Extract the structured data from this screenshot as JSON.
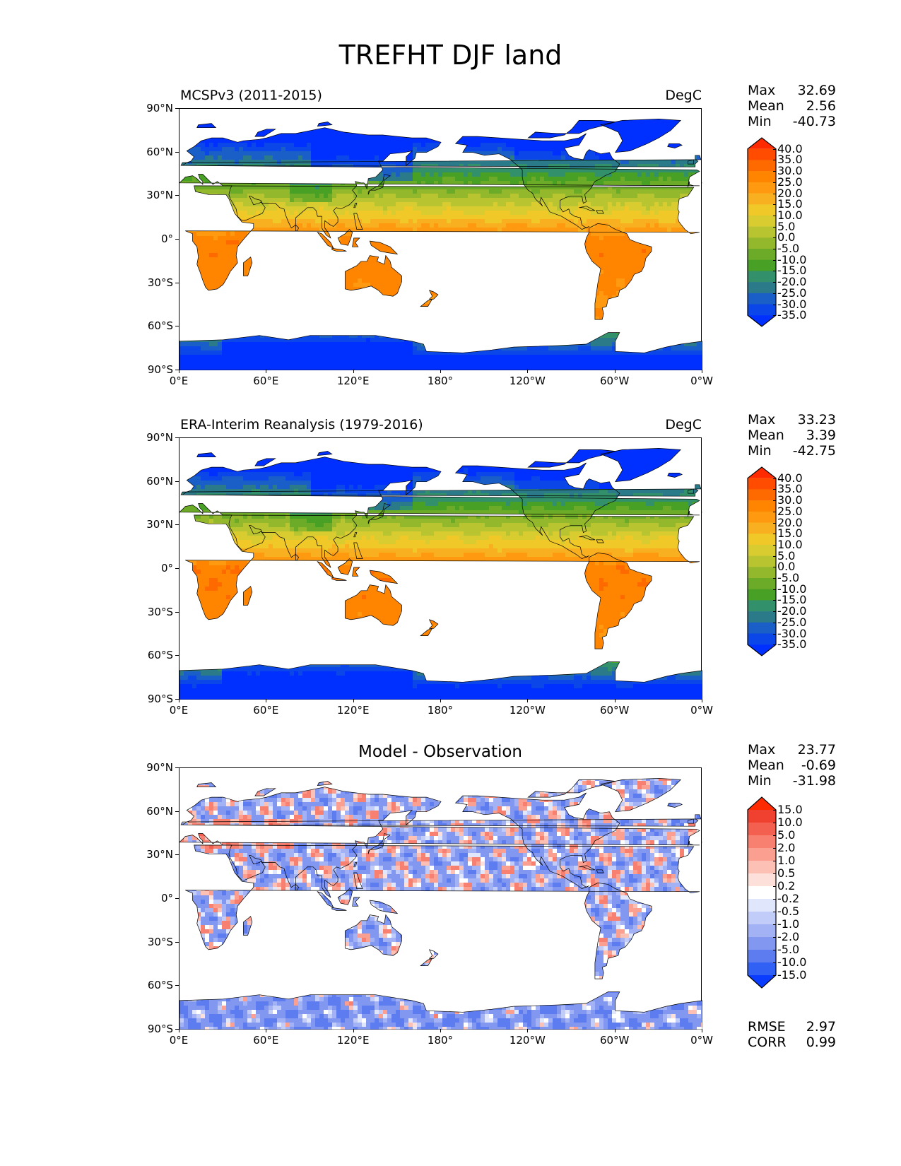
{
  "title": "TREFHT DJF land",
  "chart_data": [
    {
      "type": "heatmap",
      "title": "MCSPv3 (2011-2015)",
      "units": "DegC",
      "stats": [
        {
          "label": "Max",
          "value": "32.69"
        },
        {
          "label": "Mean",
          "value": "2.56"
        },
        {
          "label": "Min",
          "value": "-40.73"
        }
      ],
      "x_ticks": [
        "0°E",
        "60°E",
        "120°E",
        "180°",
        "120°W",
        "60°W",
        "0°W"
      ],
      "y_ticks": [
        "90°N",
        "60°N",
        "30°N",
        "0°",
        "30°S",
        "60°S",
        "90°S"
      ],
      "xlim": [
        0,
        360
      ],
      "ylim": [
        -90,
        90
      ],
      "colorbar": {
        "levels": [
          "40.0",
          "35.0",
          "30.0",
          "25.0",
          "20.0",
          "15.0",
          "10.0",
          "5.0",
          "0.0",
          "-5.0",
          "-10.0",
          "-15.0",
          "-20.0",
          "-25.0",
          "-30.0",
          "-35.0"
        ],
        "colors": [
          "#ff2a00",
          "#ff4c00",
          "#ff6a00",
          "#ff8400",
          "#ff9a10",
          "#f8b020",
          "#f0c828",
          "#d8cc30",
          "#b8c430",
          "#94b82c",
          "#6cab28",
          "#48a024",
          "#32906a",
          "#2a7a8a",
          "#1a5ec8",
          "#0a46e8",
          "#0030ff"
        ],
        "extend": "both"
      }
    },
    {
      "type": "heatmap",
      "title": "ERA-Interim Reanalysis (1979-2016)",
      "units": "DegC",
      "stats": [
        {
          "label": "Max",
          "value": "33.23"
        },
        {
          "label": "Mean",
          "value": "3.39"
        },
        {
          "label": "Min",
          "value": "-42.75"
        }
      ],
      "x_ticks": [
        "0°E",
        "60°E",
        "120°E",
        "180°",
        "120°W",
        "60°W",
        "0°W"
      ],
      "y_ticks": [
        "90°N",
        "60°N",
        "30°N",
        "0°",
        "30°S",
        "60°S",
        "90°S"
      ],
      "xlim": [
        0,
        360
      ],
      "ylim": [
        -90,
        90
      ],
      "colorbar": {
        "levels": [
          "40.0",
          "35.0",
          "30.0",
          "25.0",
          "20.0",
          "15.0",
          "10.0",
          "5.0",
          "0.0",
          "-5.0",
          "-10.0",
          "-15.0",
          "-20.0",
          "-25.0",
          "-30.0",
          "-35.0"
        ],
        "colors": [
          "#ff2a00",
          "#ff4c00",
          "#ff6a00",
          "#ff8400",
          "#ff9a10",
          "#f8b020",
          "#f0c828",
          "#d8cc30",
          "#b8c430",
          "#94b82c",
          "#6cab28",
          "#48a024",
          "#32906a",
          "#2a7a8a",
          "#1a5ec8",
          "#0a46e8",
          "#0030ff"
        ],
        "extend": "both"
      }
    },
    {
      "type": "heatmap",
      "title": "Model - Observation",
      "stats": [
        {
          "label": "Max",
          "value": "23.77"
        },
        {
          "label": "Mean",
          "value": "-0.69"
        },
        {
          "label": "Min",
          "value": "-31.98"
        }
      ],
      "extra_stats": [
        {
          "label": "RMSE",
          "value": "2.97"
        },
        {
          "label": "CORR",
          "value": "0.99"
        }
      ],
      "x_ticks": [
        "0°E",
        "60°E",
        "120°E",
        "180°",
        "120°W",
        "60°W",
        "0°W"
      ],
      "y_ticks": [
        "90°N",
        "60°N",
        "30°N",
        "0°",
        "30°S",
        "60°S",
        "90°S"
      ],
      "xlim": [
        0,
        360
      ],
      "ylim": [
        -90,
        90
      ],
      "colorbar": {
        "levels": [
          "15.0",
          "10.0",
          "5.0",
          "2.0",
          "1.0",
          "0.5",
          "0.2",
          "-0.2",
          "-0.5",
          "-1.0",
          "-2.0",
          "-5.0",
          "-10.0",
          "-15.0"
        ],
        "colors": [
          "#ff2a00",
          "#f04030",
          "#f46050",
          "#f88070",
          "#fba090",
          "#fdc0b4",
          "#fee0da",
          "#ffffff",
          "#e0e6fc",
          "#c2ccf8",
          "#a2b2f4",
          "#8298f0",
          "#5c7cf0",
          "#3060f4",
          "#0a3cff"
        ],
        "extend": "both"
      }
    }
  ]
}
